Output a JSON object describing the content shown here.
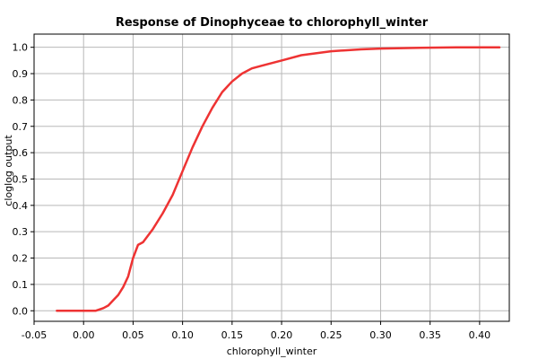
{
  "chart_data": {
    "type": "line",
    "title": "Response of Dinophyceae to chlorophyll_winter",
    "xlabel": "chlorophyll_winter",
    "ylabel": "cloglog output",
    "xlim": [
      -0.05,
      0.43
    ],
    "ylim": [
      -0.04,
      1.05
    ],
    "xticks": [
      -0.05,
      0.0,
      0.05,
      0.1,
      0.15,
      0.2,
      0.25,
      0.3,
      0.35,
      0.4
    ],
    "xtick_labels": [
      "-0.05",
      "0.00",
      "0.05",
      "0.10",
      "0.15",
      "0.20",
      "0.25",
      "0.30",
      "0.35",
      "0.40"
    ],
    "yticks": [
      0.0,
      0.1,
      0.2,
      0.3,
      0.4,
      0.5,
      0.6,
      0.7,
      0.8,
      0.9,
      1.0
    ],
    "ytick_labels": [
      "0.0",
      "0.1",
      "0.2",
      "0.3",
      "0.4",
      "0.5",
      "0.6",
      "0.7",
      "0.8",
      "0.9",
      "1.0"
    ],
    "grid": true,
    "colors": {
      "line": "#ee3333",
      "grid": "#b8b8b8",
      "axis": "#000000"
    },
    "series": [
      {
        "x": [
          -0.027,
          0.0,
          0.012,
          0.02,
          0.025,
          0.03,
          0.035,
          0.04,
          0.045,
          0.05,
          0.055,
          0.06,
          0.07,
          0.08,
          0.09,
          0.1,
          0.11,
          0.12,
          0.13,
          0.14,
          0.15,
          0.16,
          0.17,
          0.18,
          0.2,
          0.22,
          0.25,
          0.28,
          0.3,
          0.34,
          0.38,
          0.42
        ],
        "y": [
          0.0,
          0.0,
          0.0,
          0.01,
          0.02,
          0.04,
          0.06,
          0.09,
          0.13,
          0.2,
          0.25,
          0.26,
          0.31,
          0.37,
          0.44,
          0.53,
          0.62,
          0.7,
          0.77,
          0.83,
          0.87,
          0.9,
          0.92,
          0.93,
          0.95,
          0.97,
          0.985,
          0.992,
          0.995,
          0.998,
          1.0,
          1.0
        ]
      }
    ]
  }
}
